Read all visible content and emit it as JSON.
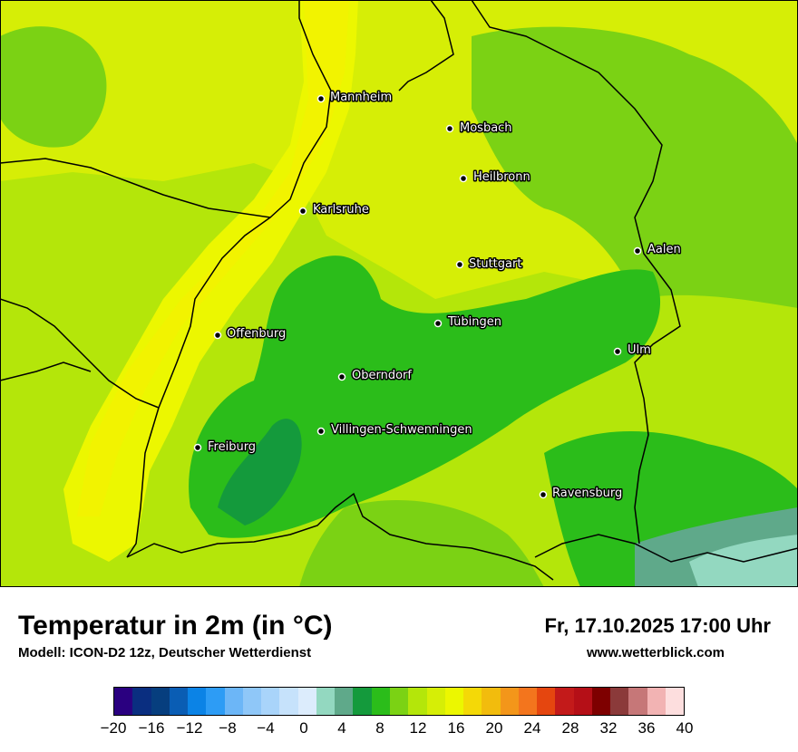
{
  "title": "Temperatur in 2m (in °C)",
  "subtitle": "Modell: ICON-D2 12z, Deutscher Wetterdienst",
  "datetime": "Fr, 17.10.2025 17:00 Uhr",
  "website": "www.wetterblick.com",
  "cities": [
    {
      "name": "Mannheim"
    },
    {
      "name": "Mosbach"
    },
    {
      "name": "Heilbronn"
    },
    {
      "name": "Karlsruhe"
    },
    {
      "name": "Aalen"
    },
    {
      "name": "Stuttgart"
    },
    {
      "name": "Offenburg"
    },
    {
      "name": "Tübingen"
    },
    {
      "name": "Ulm"
    },
    {
      "name": "Oberndorf"
    },
    {
      "name": "Villingen-Schwenningen"
    },
    {
      "name": "Freiburg"
    },
    {
      "name": "Ravensburg"
    }
  ],
  "legend": {
    "colors": [
      "#2a0080",
      "#0a2e80",
      "#063e7e",
      "#0a5db4",
      "#0b83e6",
      "#2d9cf5",
      "#6cb6f7",
      "#8fc7f8",
      "#a9d4fa",
      "#c6e2fb",
      "#dcecfc",
      "#93d8c0",
      "#5fa98a",
      "#149a3c",
      "#2bbd1a",
      "#7bd214",
      "#b4e60a",
      "#d6ee06",
      "#ecf700",
      "#f4d907",
      "#f2bc0d",
      "#f3961a",
      "#f3751d",
      "#e5460f",
      "#c31a1a",
      "#b50f17",
      "#7e0000",
      "#8b3a3a",
      "#c67778",
      "#f2b3b3",
      "#fddede"
    ],
    "tick_labels": [
      "−20",
      "−16",
      "−12",
      "−8",
      "−4",
      "0",
      "4",
      "8",
      "12",
      "16",
      "20",
      "24",
      "28",
      "32",
      "36",
      "40"
    ]
  }
}
